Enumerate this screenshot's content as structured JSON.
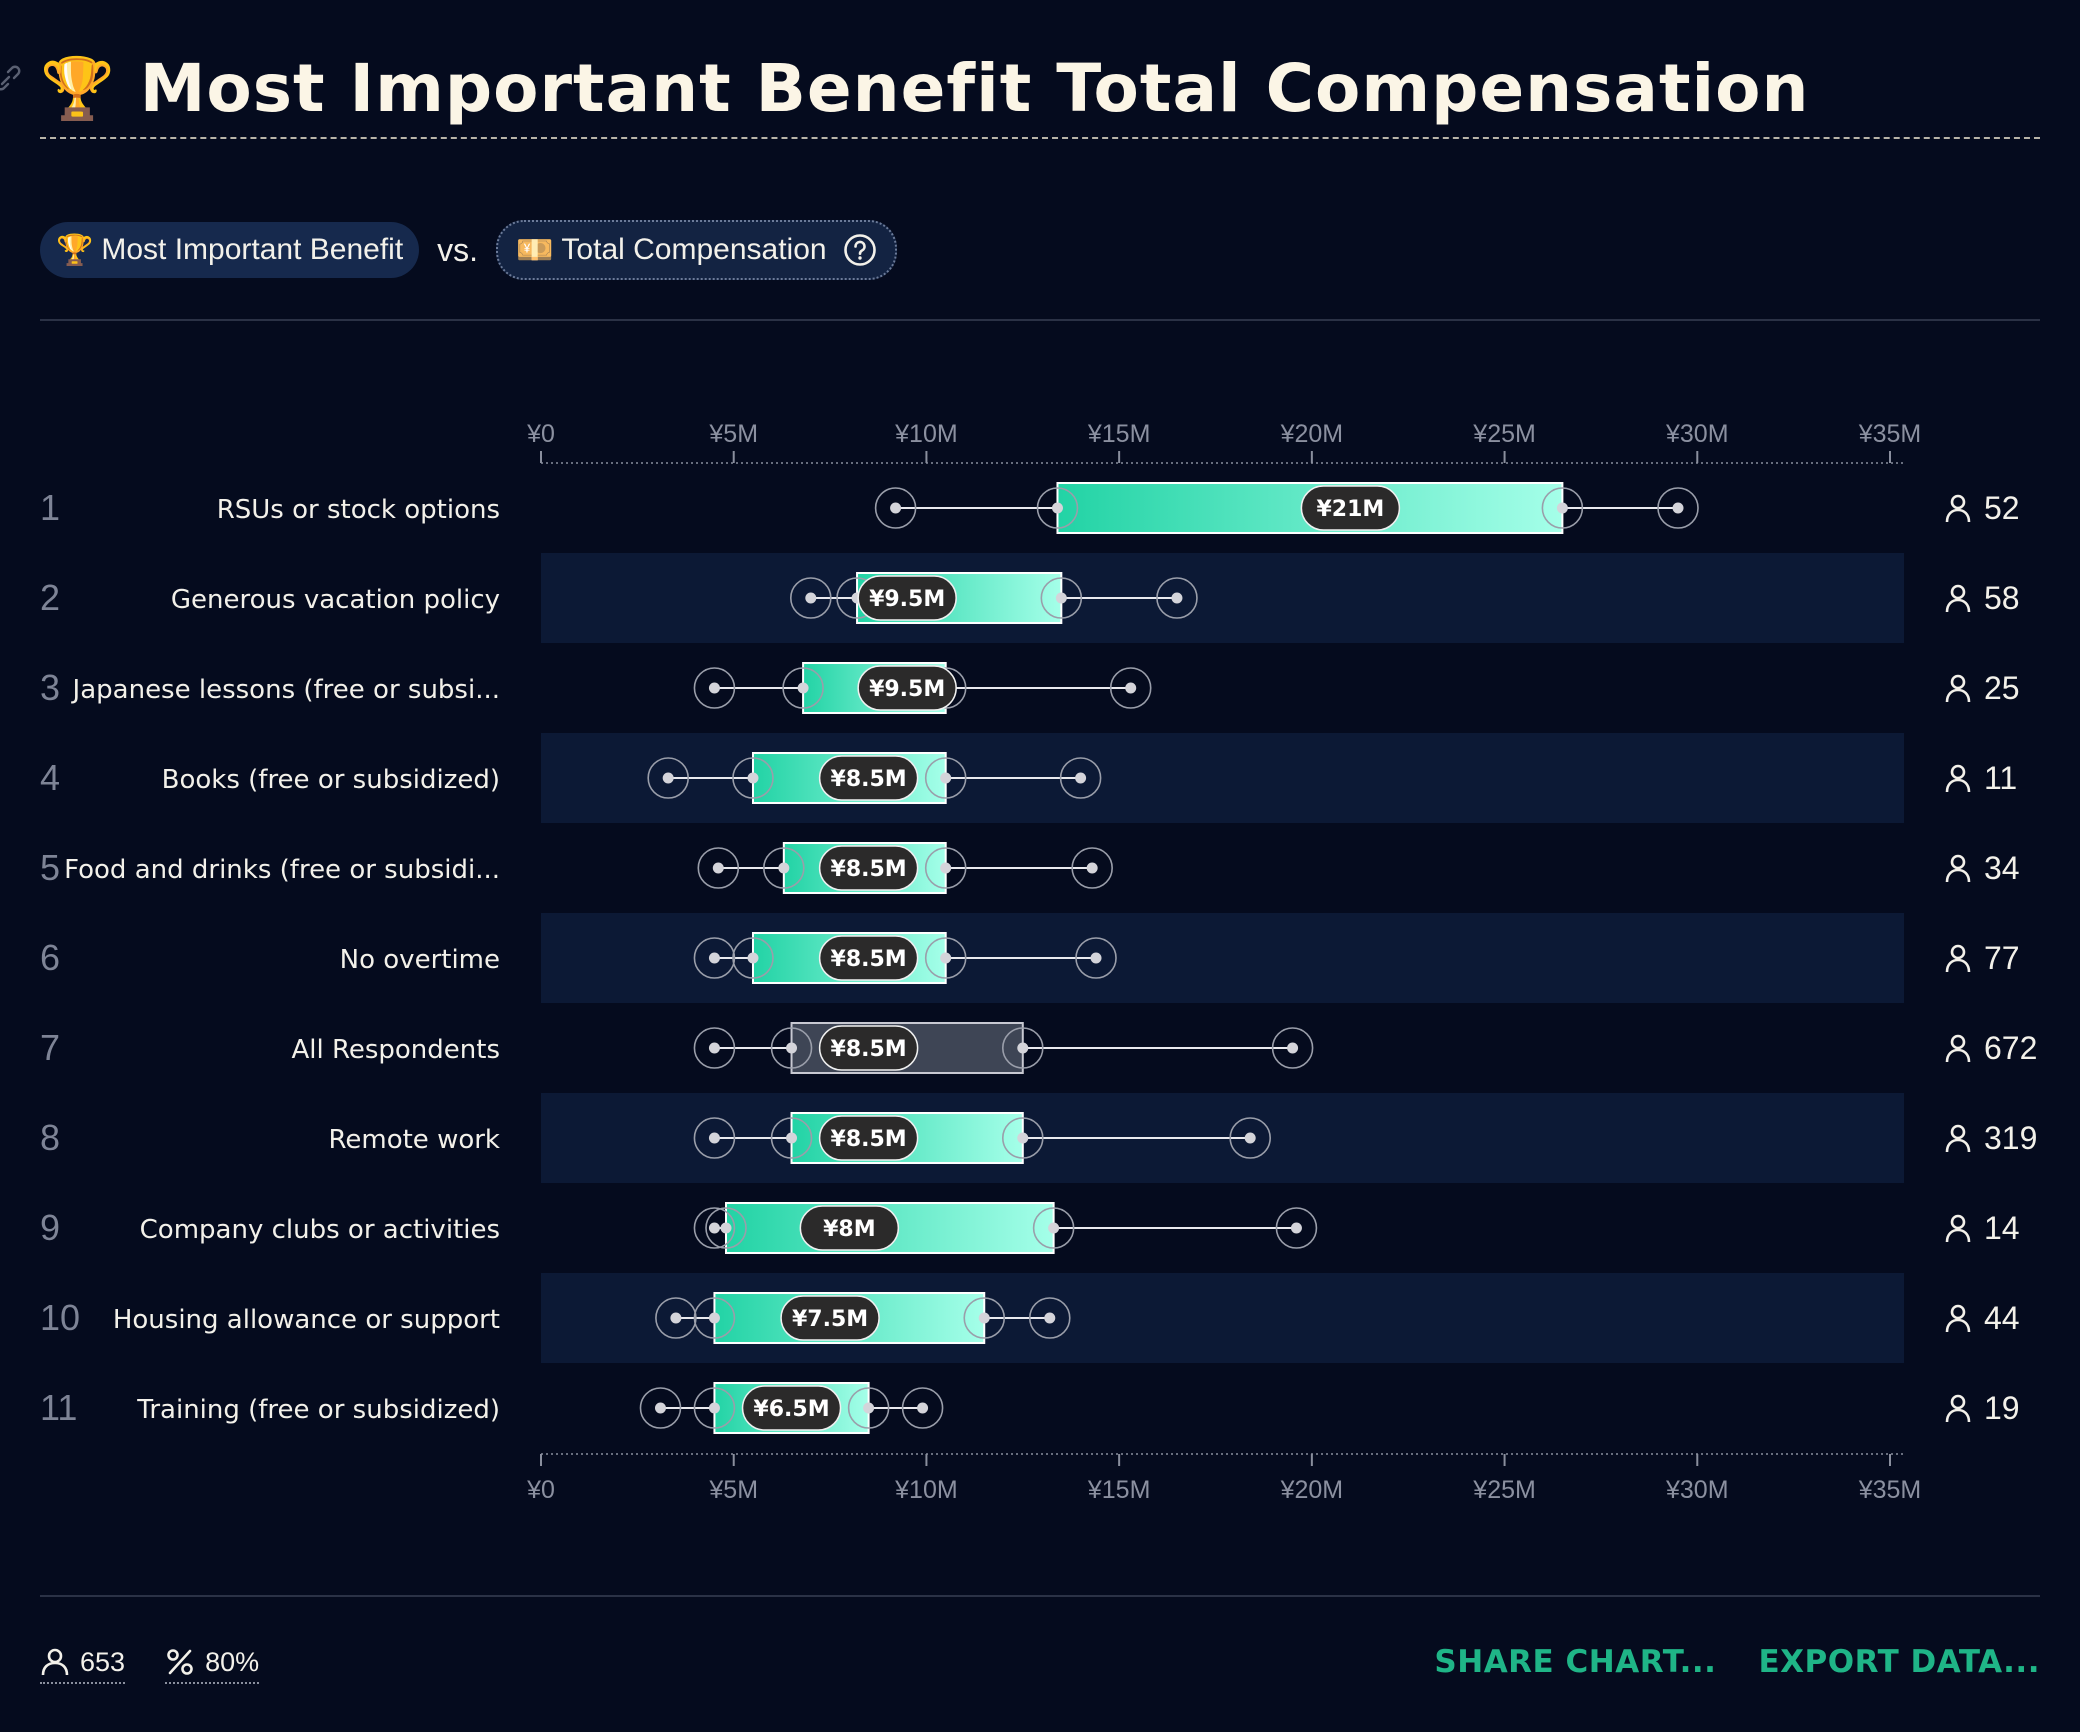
{
  "header": {
    "title_icon": "trophy-icon",
    "title_emoji": "🏆",
    "title": "Most Important Benefit Total Compensation"
  },
  "selectors": {
    "primary": {
      "icon": "🏆",
      "label": "Most Important Benefit"
    },
    "vs_label": "vs.",
    "secondary": {
      "icon": "💴",
      "label": "Total Compensation"
    }
  },
  "footer": {
    "respondents": "653",
    "percent": "80%",
    "share_label": "SHARE CHART...",
    "export_label": "EXPORT DATA..."
  },
  "colors": {
    "background": "#050b1e",
    "row_band": "#0c1935",
    "box_start": "#22d3a5",
    "box_end": "#a5ffe9",
    "neutral_box": "#3e4555",
    "accent": "#1fb587"
  },
  "chart_data": {
    "type": "box",
    "x_axis": {
      "min": 0,
      "max": 35,
      "ticks": [
        0,
        5,
        10,
        15,
        20,
        25,
        30,
        35
      ],
      "tick_labels": [
        "¥0",
        "¥5M",
        "¥10M",
        "¥15M",
        "¥20M",
        "¥25M",
        "¥30M",
        "¥35M"
      ]
    },
    "grid": false,
    "rows": [
      {
        "rank": "1",
        "label": "RSUs or stock options",
        "whisker_low": 9.2,
        "q1": 13.4,
        "median": 21,
        "q3": 26.5,
        "whisker_high": 29.5,
        "median_label": "¥21M",
        "count": "52",
        "highlight": false
      },
      {
        "rank": "2",
        "label": "Generous vacation policy",
        "whisker_low": 7.0,
        "q1": 8.2,
        "median": 9.5,
        "q3": 13.5,
        "whisker_high": 16.5,
        "median_label": "¥9.5M",
        "count": "58",
        "highlight": false
      },
      {
        "rank": "3",
        "label": "Japanese lessons (free or subsi...",
        "whisker_low": 4.5,
        "q1": 6.8,
        "median": 9.5,
        "q3": 10.5,
        "whisker_high": 15.3,
        "median_label": "¥9.5M",
        "count": "25",
        "highlight": false
      },
      {
        "rank": "4",
        "label": "Books (free or subsidized)",
        "whisker_low": 3.3,
        "q1": 5.5,
        "median": 8.5,
        "q3": 10.5,
        "whisker_high": 14.0,
        "median_label": "¥8.5M",
        "count": "11",
        "highlight": false
      },
      {
        "rank": "5",
        "label": "Food and drinks (free or subsidi...",
        "whisker_low": 4.6,
        "q1": 6.3,
        "median": 8.5,
        "q3": 10.5,
        "whisker_high": 14.3,
        "median_label": "¥8.5M",
        "count": "34",
        "highlight": false
      },
      {
        "rank": "6",
        "label": "No overtime",
        "whisker_low": 4.5,
        "q1": 5.5,
        "median": 8.5,
        "q3": 10.5,
        "whisker_high": 14.4,
        "median_label": "¥8.5M",
        "count": "77",
        "highlight": false
      },
      {
        "rank": "7",
        "label": "All Respondents",
        "whisker_low": 4.5,
        "q1": 6.5,
        "median": 8.5,
        "q3": 12.5,
        "whisker_high": 19.5,
        "median_label": "¥8.5M",
        "count": "672",
        "highlight": true
      },
      {
        "rank": "8",
        "label": "Remote work",
        "whisker_low": 4.5,
        "q1": 6.5,
        "median": 8.5,
        "q3": 12.5,
        "whisker_high": 18.4,
        "median_label": "¥8.5M",
        "count": "319",
        "highlight": false
      },
      {
        "rank": "9",
        "label": "Company clubs or activities",
        "whisker_low": 4.5,
        "q1": 4.8,
        "median": 8,
        "q3": 13.3,
        "whisker_high": 19.6,
        "median_label": "¥8M",
        "count": "14",
        "highlight": false
      },
      {
        "rank": "10",
        "label": "Housing allowance or support",
        "whisker_low": 3.5,
        "q1": 4.5,
        "median": 7.5,
        "q3": 11.5,
        "whisker_high": 13.2,
        "median_label": "¥7.5M",
        "count": "44",
        "highlight": false
      },
      {
        "rank": "11",
        "label": "Training (free or subsidized)",
        "whisker_low": 3.1,
        "q1": 4.5,
        "median": 6.5,
        "q3": 8.5,
        "whisker_high": 9.9,
        "median_label": "¥6.5M",
        "count": "19",
        "highlight": false
      }
    ]
  }
}
